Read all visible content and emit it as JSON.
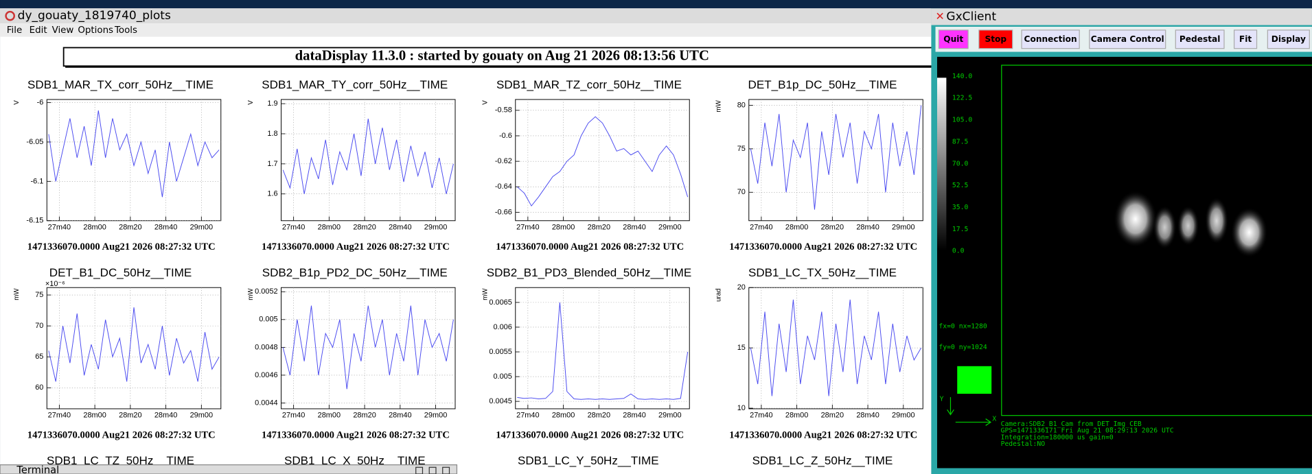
{
  "plots_window": {
    "title": "dy_gouaty_1819740_plots",
    "menu": [
      "File",
      "Edit",
      "View",
      "Options",
      "Tools"
    ],
    "banner": "dataDisplay 11.3.0 : started by gouaty on Aug 21 2026 08:13:56 UTC"
  },
  "chart_data": [
    {
      "type": "line",
      "title": "SDB1_MAR_TX_corr_50Hz__TIME",
      "ylabel": "V",
      "color": "#4b4bf0",
      "grid": true,
      "footer": "1471336070.0000 Aug21 2026 08:27:32 UTC",
      "x": [
        1654,
        1658,
        1662,
        1666,
        1670,
        1674,
        1678,
        1682,
        1686,
        1690,
        1694,
        1698,
        1702,
        1706,
        1710,
        1714,
        1718,
        1722,
        1726,
        1730,
        1734,
        1738,
        1742,
        1746,
        1750
      ],
      "values": [
        -6.04,
        -6.1,
        -6.06,
        -6.02,
        -6.07,
        -6.03,
        -6.08,
        -6.01,
        -6.07,
        -6.02,
        -6.06,
        -6.04,
        -6.08,
        -6.05,
        -6.09,
        -6.06,
        -6.12,
        -6.05,
        -6.1,
        -6.07,
        -6.04,
        -6.08,
        -6.05,
        -6.07,
        -6.06
      ],
      "xlim": [
        1653,
        1751
      ],
      "xticks": [
        {
          "value": 1660,
          "label": "27m40"
        },
        {
          "value": 1680,
          "label": "28m00"
        },
        {
          "value": 1700,
          "label": "28m20"
        },
        {
          "value": 1720,
          "label": "28m40"
        },
        {
          "value": 1740,
          "label": "29m00"
        }
      ],
      "ylim": [
        -6.15,
        -5.996
      ],
      "yticks": [
        -6,
        -6.05,
        -6.1,
        -6.15
      ]
    },
    {
      "type": "line",
      "title": "SDB1_MAR_TY_corr_50Hz__TIME",
      "ylabel": "V",
      "color": "#4b4bf0",
      "grid": true,
      "footer": "1471336070.0000 Aug21 2026 08:27:32 UTC",
      "x": [
        1654,
        1658,
        1662,
        1666,
        1670,
        1674,
        1678,
        1682,
        1686,
        1690,
        1694,
        1698,
        1702,
        1706,
        1710,
        1714,
        1718,
        1722,
        1726,
        1730,
        1734,
        1738,
        1742,
        1746,
        1750
      ],
      "values": [
        1.68,
        1.62,
        1.75,
        1.6,
        1.72,
        1.65,
        1.78,
        1.63,
        1.74,
        1.68,
        1.8,
        1.66,
        1.85,
        1.7,
        1.82,
        1.68,
        1.78,
        1.64,
        1.76,
        1.66,
        1.74,
        1.62,
        1.72,
        1.6,
        1.7
      ],
      "xlim": [
        1653,
        1751
      ],
      "xticks": [
        {
          "value": 1660,
          "label": "27m40"
        },
        {
          "value": 1680,
          "label": "28m00"
        },
        {
          "value": 1700,
          "label": "28m20"
        },
        {
          "value": 1720,
          "label": "28m40"
        },
        {
          "value": 1740,
          "label": "29m00"
        }
      ],
      "ylim": [
        1.511,
        1.914
      ],
      "yticks": [
        1.9,
        1.8,
        1.7,
        1.6
      ]
    },
    {
      "type": "line",
      "title": "SDB1_MAR_TZ_corr_50Hz__TIME",
      "ylabel": "V",
      "color": "#4b4bf0",
      "grid": true,
      "footer": "1471336070.0000 Aug21 2026 08:27:32 UTC",
      "x": [
        1654,
        1658,
        1662,
        1666,
        1670,
        1674,
        1678,
        1682,
        1686,
        1690,
        1694,
        1698,
        1702,
        1706,
        1710,
        1714,
        1718,
        1722,
        1726,
        1730,
        1734,
        1738,
        1742,
        1746,
        1750
      ],
      "values": [
        -0.64,
        -0.645,
        -0.655,
        -0.648,
        -0.64,
        -0.632,
        -0.628,
        -0.62,
        -0.615,
        -0.6,
        -0.59,
        -0.585,
        -0.59,
        -0.6,
        -0.612,
        -0.61,
        -0.615,
        -0.612,
        -0.62,
        -0.628,
        -0.615,
        -0.608,
        -0.615,
        -0.63,
        -0.648
      ],
      "xlim": [
        1653,
        1751
      ],
      "xticks": [
        {
          "value": 1660,
          "label": "27m40"
        },
        {
          "value": 1680,
          "label": "28m00"
        },
        {
          "value": 1700,
          "label": "28m20"
        },
        {
          "value": 1720,
          "label": "28m40"
        },
        {
          "value": 1740,
          "label": "29m00"
        }
      ],
      "ylim": [
        -0.6666,
        -0.5715
      ],
      "yticks": [
        -0.58,
        -0.6,
        -0.62,
        -0.64,
        -0.66
      ]
    },
    {
      "type": "line",
      "title": "DET_B1p_DC_50Hz__TIME",
      "ylabel": "mW",
      "color": "#4b4bf0",
      "grid": true,
      "footer": "1471336070.0000 Aug21 2026 08:27:32 UTC",
      "x": [
        1654,
        1658,
        1662,
        1666,
        1670,
        1674,
        1678,
        1682,
        1686,
        1690,
        1694,
        1698,
        1702,
        1706,
        1710,
        1714,
        1718,
        1722,
        1726,
        1730,
        1734,
        1738,
        1742,
        1746,
        1750
      ],
      "values": [
        75,
        71,
        78,
        73,
        79,
        70,
        76,
        74,
        78,
        68,
        77,
        72,
        79,
        74,
        78,
        71,
        77,
        75,
        79,
        70,
        78,
        73,
        77,
        72,
        80
      ],
      "xlim": [
        1653,
        1751
      ],
      "xticks": [
        {
          "value": 1660,
          "label": "27m40"
        },
        {
          "value": 1680,
          "label": "28m00"
        },
        {
          "value": 1700,
          "label": "28m20"
        },
        {
          "value": 1720,
          "label": "28m40"
        },
        {
          "value": 1740,
          "label": "29m00"
        }
      ],
      "ylim": [
        66.73,
        80.67
      ],
      "yticks": [
        80,
        75,
        70
      ]
    },
    {
      "type": "line",
      "title": "DET_B1_DC_50Hz__TIME",
      "ylabel": "mW",
      "multiplier": "×10⁻⁶",
      "color": "#4b4bf0",
      "grid": true,
      "footer": "1471336070.0000 Aug21 2026 08:27:32 UTC",
      "x": [
        1654,
        1658,
        1662,
        1666,
        1670,
        1674,
        1678,
        1682,
        1686,
        1690,
        1694,
        1698,
        1702,
        1706,
        1710,
        1714,
        1718,
        1722,
        1726,
        1730,
        1734,
        1738,
        1742,
        1746,
        1750
      ],
      "values": [
        66,
        61,
        70,
        64,
        72,
        62,
        67,
        63,
        71,
        65,
        68,
        61,
        73,
        64,
        67,
        63,
        70,
        62,
        68,
        64,
        66,
        61,
        69,
        63,
        65
      ],
      "xlim": [
        1653,
        1751
      ],
      "xticks": [
        {
          "value": 1660,
          "label": "27m40"
        },
        {
          "value": 1680,
          "label": "28m00"
        },
        {
          "value": 1700,
          "label": "28m20"
        },
        {
          "value": 1720,
          "label": "28m40"
        },
        {
          "value": 1740,
          "label": "29m00"
        }
      ],
      "ylim": [
        56.6,
        76.2
      ],
      "yticks": [
        75,
        70,
        65,
        60
      ]
    },
    {
      "type": "line",
      "title": "SDB2_B1p_PD2_DC_50Hz__TIME",
      "ylabel": "mW",
      "color": "#4b4bf0",
      "grid": true,
      "footer": "1471336070.0000 Aug21 2026 08:27:32 UTC",
      "x": [
        1654,
        1658,
        1662,
        1666,
        1670,
        1674,
        1678,
        1682,
        1686,
        1690,
        1694,
        1698,
        1702,
        1706,
        1710,
        1714,
        1718,
        1722,
        1726,
        1730,
        1734,
        1738,
        1742,
        1746,
        1750
      ],
      "values": [
        0.0048,
        0.0046,
        0.005,
        0.0047,
        0.0051,
        0.0046,
        0.0049,
        0.0048,
        0.005,
        0.0045,
        0.0049,
        0.0047,
        0.0051,
        0.0048,
        0.005,
        0.0046,
        0.0049,
        0.0047,
        0.0051,
        0.0046,
        0.005,
        0.0048,
        0.0049,
        0.0047,
        0.005
      ],
      "xlim": [
        1653,
        1751
      ],
      "xticks": [
        {
          "value": 1660,
          "label": "27m40"
        },
        {
          "value": 1680,
          "label": "28m00"
        },
        {
          "value": 1700,
          "label": "28m20"
        },
        {
          "value": 1720,
          "label": "28m40"
        },
        {
          "value": 1740,
          "label": "29m00"
        }
      ],
      "ylim": [
        0.004358,
        0.00523
      ],
      "yticks": [
        0.0052,
        0.005,
        0.0048,
        0.0046,
        0.0044
      ]
    },
    {
      "type": "line",
      "title": "SDB2_B1_PD3_Blended_50Hz__TIME",
      "ylabel": "mW",
      "color": "#4b4bf0",
      "grid": true,
      "footer": "1471336070.0000 Aug21 2026 08:27:32 UTC",
      "x": [
        1654,
        1658,
        1662,
        1666,
        1670,
        1674,
        1678,
        1682,
        1686,
        1690,
        1694,
        1698,
        1702,
        1706,
        1710,
        1714,
        1718,
        1722,
        1726,
        1730,
        1734,
        1738,
        1742,
        1746,
        1750
      ],
      "values": [
        0.00458,
        0.00456,
        0.00457,
        0.00455,
        0.00456,
        0.0047,
        0.0065,
        0.0047,
        0.00455,
        0.00454,
        0.00455,
        0.00454,
        0.00455,
        0.00454,
        0.00455,
        0.00456,
        0.00465,
        0.00455,
        0.00454,
        0.00455,
        0.00454,
        0.00455,
        0.00454,
        0.00456,
        0.0055
      ],
      "xlim": [
        1653,
        1751
      ],
      "xticks": [
        {
          "value": 1660,
          "label": "27m40"
        },
        {
          "value": 1680,
          "label": "28m00"
        },
        {
          "value": 1700,
          "label": "28m20"
        },
        {
          "value": 1720,
          "label": "28m40"
        },
        {
          "value": 1740,
          "label": "29m00"
        }
      ],
      "ylim": [
        0.00435,
        0.0068
      ],
      "yticks": [
        0.0065,
        0.006,
        0.0055,
        0.005,
        0.0045
      ]
    },
    {
      "type": "line",
      "title": "SDB1_LC_TX_50Hz__TIME",
      "ylabel": "urad",
      "color": "#4b4bf0",
      "grid": true,
      "footer": "1471336070.0000 Aug21 2026 08:27:32 UTC",
      "x": [
        1654,
        1658,
        1662,
        1666,
        1670,
        1674,
        1678,
        1682,
        1686,
        1690,
        1694,
        1698,
        1702,
        1706,
        1710,
        1714,
        1718,
        1722,
        1726,
        1730,
        1734,
        1738,
        1742,
        1746,
        1750
      ],
      "values": [
        15,
        12,
        18,
        11,
        17,
        13,
        19,
        12,
        16,
        14,
        18,
        11,
        17,
        13,
        19,
        12,
        16,
        14,
        18,
        12,
        17,
        13,
        16,
        14,
        15
      ],
      "xlim": [
        1653,
        1751
      ],
      "xticks": [
        {
          "value": 1660,
          "label": "27m40"
        },
        {
          "value": 1680,
          "label": "28m00"
        },
        {
          "value": 1700,
          "label": "28m20"
        },
        {
          "value": 1720,
          "label": "28m40"
        },
        {
          "value": 1740,
          "label": "29m00"
        }
      ],
      "ylim": [
        9.95,
        20
      ],
      "yticks": [
        20,
        15,
        10
      ]
    }
  ],
  "more_plots": [
    "SDB1_LC_TZ_50Hz__TIME",
    "SDB1_LC_X_50Hz__TIME",
    "SDB1_LC_Y_50Hz__TIME",
    "SDB1_LC_Z_50Hz__TIME"
  ],
  "terminal": {
    "title": "Terminal"
  },
  "gx_client": {
    "title": "GxClient",
    "buttons": [
      "Quit",
      "Stop",
      "Connection",
      "Camera Control",
      "Pedestal",
      "Fit",
      "Display"
    ],
    "colorbar": {
      "lim": [
        0,
        140
      ],
      "ticks": [
        {
          "value": 140,
          "label": "140.0"
        },
        {
          "value": 122.5,
          "label": "122.5"
        },
        {
          "value": 105,
          "label": "105.0"
        },
        {
          "value": 87.5,
          "label": "87.5"
        },
        {
          "value": 70,
          "label": "70.0"
        },
        {
          "value": 52.5,
          "label": "52.5"
        },
        {
          "value": 35,
          "label": "35.0"
        },
        {
          "value": 17.5,
          "label": "17.5"
        },
        {
          "value": 0,
          "label": "0.0"
        }
      ]
    },
    "fx": "fx=0 nx=1280",
    "fy": "fy=0 ny=1024",
    "axis_y": "Y",
    "axis_x": "X",
    "info": [
      "Camera:SDB2_B1_Cam from DET_Img_CEB",
      "GPS=1471336171 Fri Aug 21 08:29:13 2026  UTC",
      "Integration=180000 us gain=0",
      "Pedestal:NO"
    ]
  }
}
